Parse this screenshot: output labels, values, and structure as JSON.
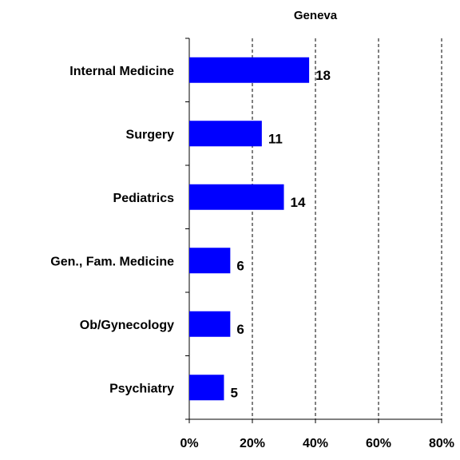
{
  "chart_data": {
    "type": "hbar",
    "title": "Geneva",
    "categories": [
      "Internal Medicine",
      "Surgery",
      "Pediatrics",
      "Gen., Fam. Medicine",
      "Ob/Gynecology",
      "Psychiatry"
    ],
    "values": [
      38,
      23,
      30,
      13,
      13,
      11
    ],
    "data_labels": [
      18,
      11,
      14,
      6,
      6,
      5
    ],
    "color": "#0000ff",
    "xlim": [
      0,
      80
    ],
    "xticks": [
      {
        "value": 0,
        "label": "0%"
      },
      {
        "value": 20,
        "label": "20%"
      },
      {
        "value": 40,
        "label": "40%"
      },
      {
        "value": 60,
        "label": "60%"
      },
      {
        "value": 80,
        "label": "80%"
      }
    ],
    "grid": true
  }
}
